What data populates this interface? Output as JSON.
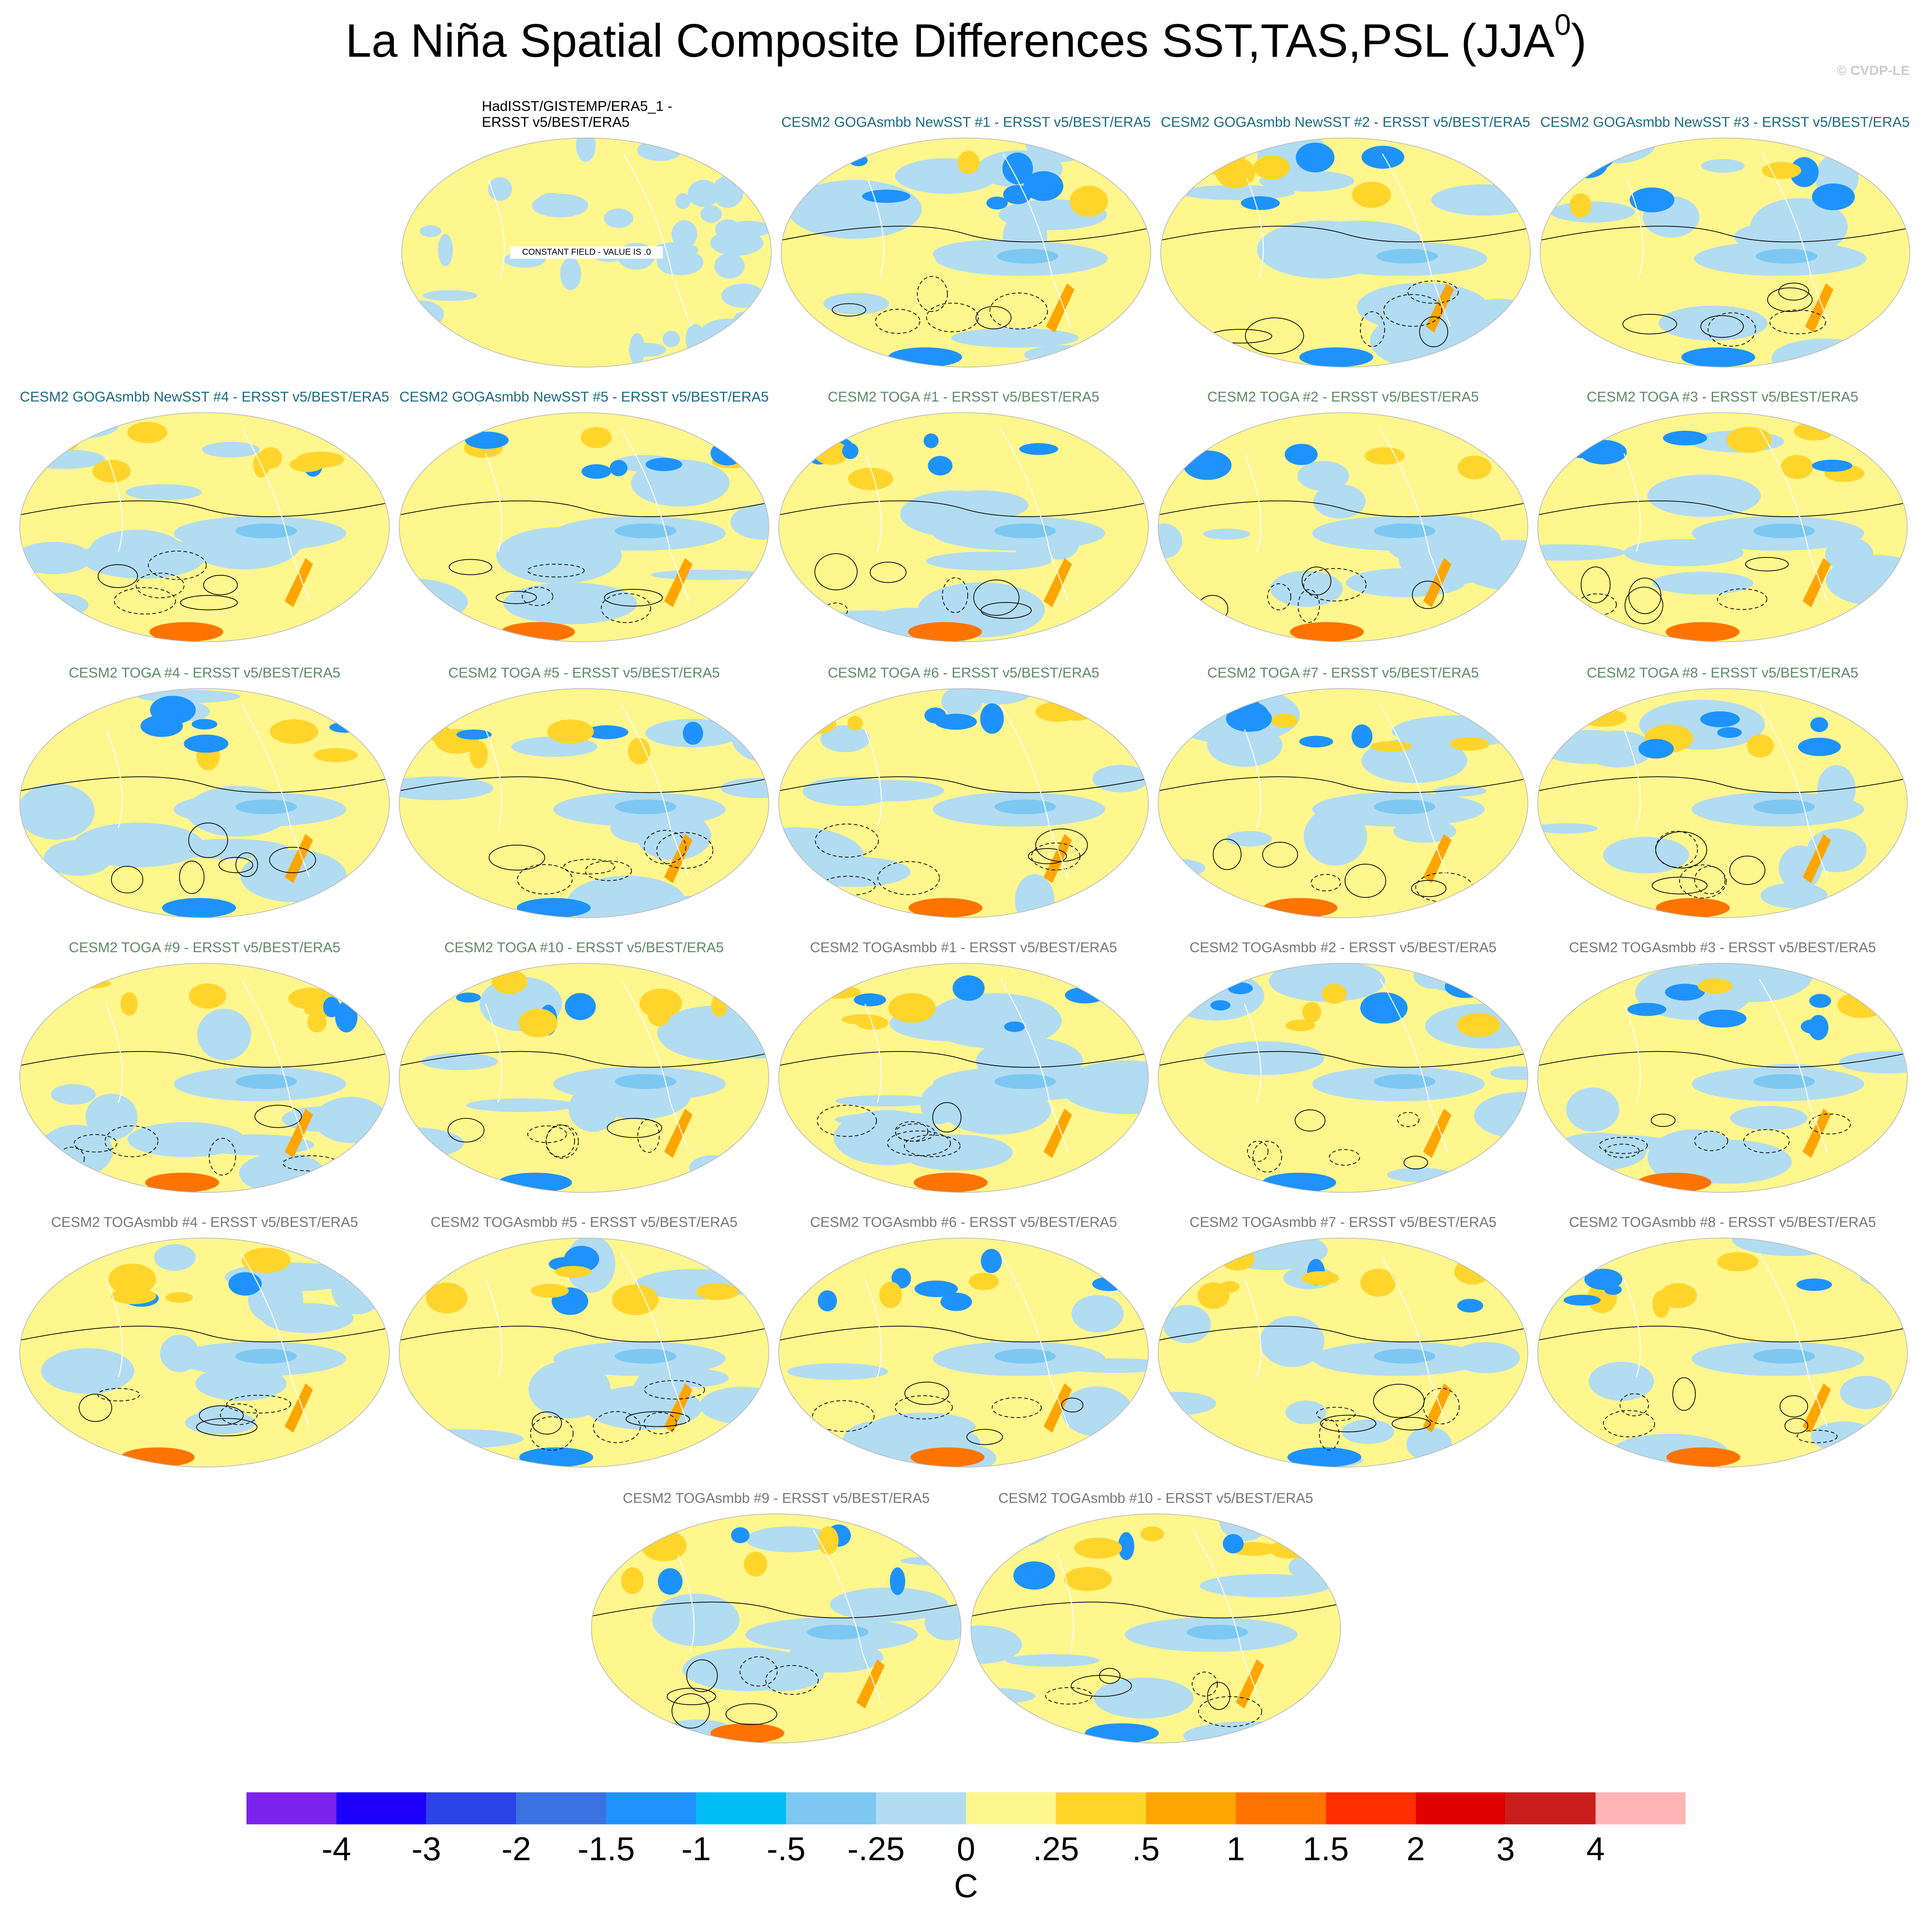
{
  "header": {
    "title": "La Niña Spatial Composite Differences SST,TAS,PSL (JJA",
    "title_superscript": "0",
    "title_end": ")",
    "credit": "© CVDP-LE"
  },
  "panels": [
    {
      "title_lines": [
        "HadISST/GISTEMP/ERA5_1 -",
        "ERSST v5/BEST/ERA5"
      ],
      "note": "CONSTANT FIELD - VALUE IS .0"
    },
    {
      "title_lines": [
        "CESM2 GOGAsmbb NewSST #1 - ERSST v5/BEST/ERA5"
      ]
    },
    {
      "title_lines": [
        "CESM2 GOGAsmbb NewSST #2 - ERSST v5/BEST/ERA5"
      ]
    },
    {
      "title_lines": [
        "CESM2 GOGAsmbb NewSST #3 - ERSST v5/BEST/ERA5"
      ]
    },
    {
      "title_lines": [
        "CESM2 GOGAsmbb NewSST #4 - ERSST v5/BEST/ERA5"
      ]
    },
    {
      "title_lines": [
        "CESM2 GOGAsmbb NewSST #5 - ERSST v5/BEST/ERA5"
      ]
    },
    {
      "title_lines": [
        "CESM2 TOGA #1 - ERSST v5/BEST/ERA5"
      ]
    },
    {
      "title_lines": [
        "CESM2 TOGA #2 - ERSST v5/BEST/ERA5"
      ]
    },
    {
      "title_lines": [
        "CESM2 TOGA #3 - ERSST v5/BEST/ERA5"
      ]
    },
    {
      "title_lines": [
        "CESM2 TOGA #4 - ERSST v5/BEST/ERA5"
      ]
    },
    {
      "title_lines": [
        "CESM2 TOGA #5 - ERSST v5/BEST/ERA5"
      ]
    },
    {
      "title_lines": [
        "CESM2 TOGA #6 - ERSST v5/BEST/ERA5"
      ]
    },
    {
      "title_lines": [
        "CESM2 TOGA #7 - ERSST v5/BEST/ERA5"
      ]
    },
    {
      "title_lines": [
        "CESM2 TOGA #8 - ERSST v5/BEST/ERA5"
      ]
    },
    {
      "title_lines": [
        "CESM2 TOGA #9 - ERSST v5/BEST/ERA5"
      ]
    },
    {
      "title_lines": [
        "CESM2 TOGA #10 - ERSST v5/BEST/ERA5"
      ]
    },
    {
      "title_lines": [
        "CESM2 TOGAsmbb #1 - ERSST v5/BEST/ERA5"
      ]
    },
    {
      "title_lines": [
        "CESM2 TOGAsmbb #2 - ERSST v5/BEST/ERA5"
      ]
    },
    {
      "title_lines": [
        "CESM2 TOGAsmbb #3 - ERSST v5/BEST/ERA5"
      ]
    },
    {
      "title_lines": [
        "CESM2 TOGAsmbb #4 - ERSST v5/BEST/ERA5"
      ]
    },
    {
      "title_lines": [
        "CESM2 TOGAsmbb #5 - ERSST v5/BEST/ERA5"
      ]
    },
    {
      "title_lines": [
        "CESM2 TOGAsmbb #6 - ERSST v5/BEST/ERA5"
      ]
    },
    {
      "title_lines": [
        "CESM2 TOGAsmbb #7 - ERSST v5/BEST/ERA5"
      ]
    },
    {
      "title_lines": [
        "CESM2 TOGAsmbb #8 - ERSST v5/BEST/ERA5"
      ]
    },
    {
      "title_lines": [
        "CESM2 TOGAsmbb #9 - ERSST v5/BEST/ERA5"
      ]
    },
    {
      "title_lines": [
        "CESM2 TOGAsmbb #10 - ERSST v5/BEST/ERA5"
      ]
    }
  ],
  "colorbar": {
    "labels": [
      "-4",
      "-3",
      "-2",
      "-1.5",
      "-1",
      "-.5",
      "-.25",
      "0",
      ".25",
      ".5",
      "1",
      "1.5",
      "2",
      "3",
      "4"
    ],
    "colors": [
      "#7b22ec",
      "#1c00fa",
      "#2a44e6",
      "#3a72e2",
      "#1e93ff",
      "#00bcf5",
      "#7cc8f2",
      "#b2dcf2",
      "#fff68e",
      "#ffd52c",
      "#ffa500",
      "#ff7400",
      "#ff2f00",
      "#e00000",
      "#c81e1e",
      "#ffb4b6"
    ],
    "unit": "C"
  }
}
